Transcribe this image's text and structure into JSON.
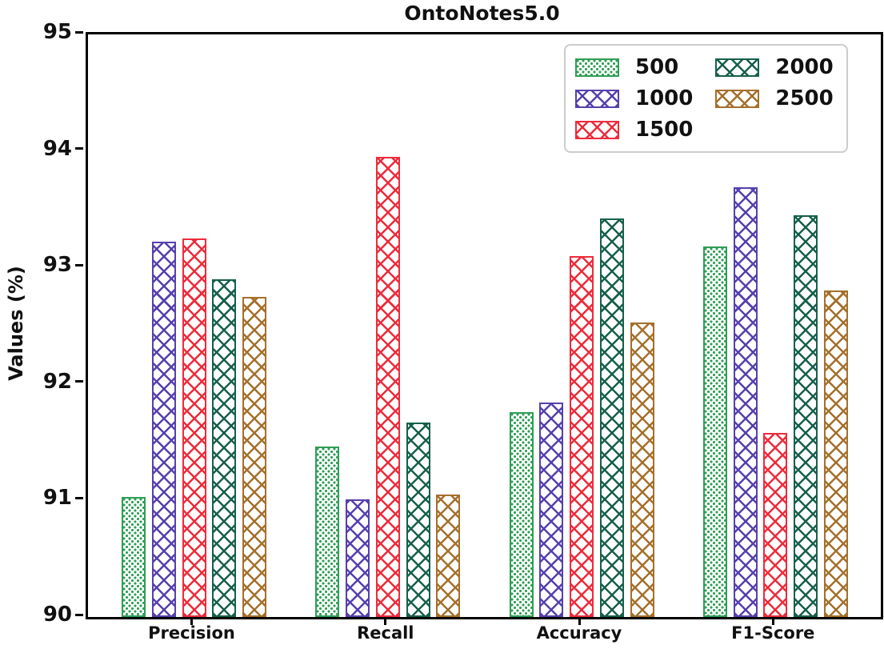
{
  "chart_data": {
    "type": "bar",
    "title": "OntoNotes5.0",
    "xlabel": "",
    "ylabel": "Values (%)",
    "ylim": [
      90,
      95
    ],
    "yticks": [
      95,
      94,
      93,
      92,
      91,
      90
    ],
    "grid": false,
    "categories": [
      "Precision",
      "Recall",
      "Accuracy",
      "F1-Score"
    ],
    "series": [
      {
        "name": "500",
        "color": "#2e9e54",
        "hatch": "dots",
        "values": [
          91.03,
          91.46,
          91.76,
          93.18
        ]
      },
      {
        "name": "1000",
        "color": "#5640ae",
        "hatch": "cross",
        "values": [
          93.22,
          91.01,
          91.84,
          93.69
        ]
      },
      {
        "name": "1500",
        "color": "#ee2b3b",
        "hatch": "cross",
        "values": [
          93.25,
          93.95,
          93.1,
          91.58
        ]
      },
      {
        "name": "2000",
        "color": "#16604c",
        "hatch": "cross",
        "values": [
          92.9,
          91.67,
          93.42,
          93.45
        ]
      },
      {
        "name": "2500",
        "color": "#a5702b",
        "hatch": "cross",
        "values": [
          92.75,
          91.05,
          92.53,
          92.8
        ]
      }
    ],
    "legend": {
      "position": "upper right",
      "columns": 2,
      "column_order": [
        "500",
        "1000",
        "1500",
        "2000",
        "2500"
      ]
    }
  }
}
